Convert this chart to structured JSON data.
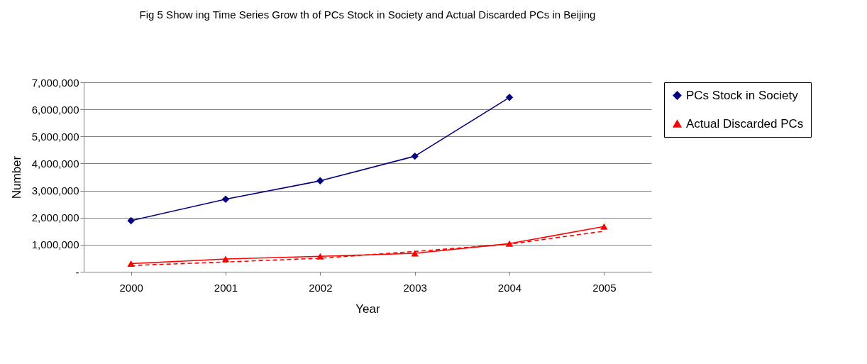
{
  "chart_data": {
    "type": "line",
    "title": "Fig 5 Show ing Time Series Grow th of PCs  Stock in Society and Actual Discarded PCs in Beijing",
    "xlabel": "Year",
    "ylabel": "Number",
    "categories": [
      "2000",
      "2001",
      "2002",
      "2003",
      "2004",
      "2005"
    ],
    "series": [
      {
        "name": "PCs Stock in Society",
        "color": "#000080",
        "marker": "diamond",
        "values": [
          1890000,
          2680000,
          3360000,
          4270000,
          6440000,
          null
        ]
      },
      {
        "name": "Actual Discarded PCs",
        "color": "#ff0000",
        "marker": "triangle",
        "values": [
          300000,
          470000,
          570000,
          680000,
          1040000,
          1670000
        ]
      },
      {
        "type": "line",
        "color": "#ff0000",
        "marker": "none",
        "line_style": "dashed",
        "values": [
          230000,
          360000,
          500000,
          750000,
          1020000,
          1500000
        ]
      }
    ],
    "ylim": [
      0,
      7000000
    ],
    "yticks": [
      {
        "value": 0,
        "label": "-"
      },
      {
        "value": 1000000,
        "label": "1,000,000"
      },
      {
        "value": 2000000,
        "label": "2,000,000"
      },
      {
        "value": 3000000,
        "label": "3,000,000"
      },
      {
        "value": 4000000,
        "label": "4,000,000"
      },
      {
        "value": 5000000,
        "label": "5,000,000"
      },
      {
        "value": 6000000,
        "label": "6,000,000"
      },
      {
        "value": 7000000,
        "label": "7,000,000"
      }
    ],
    "grid": "y",
    "legend": "right"
  }
}
